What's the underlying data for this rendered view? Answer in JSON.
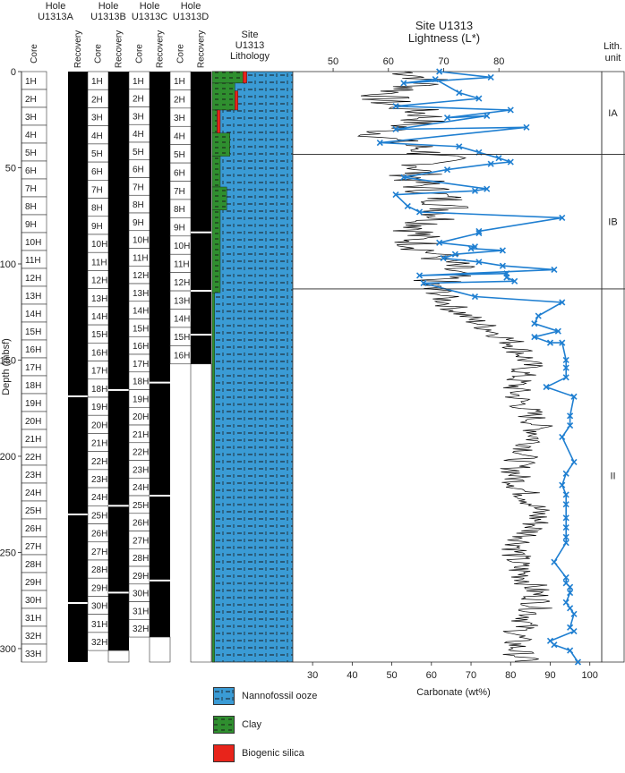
{
  "holes": [
    {
      "label": "Hole\nU1313A",
      "bottom": 307
    },
    {
      "label": "Hole\nU1313B",
      "bottom": 301
    },
    {
      "label": "Hole\nU1313C",
      "bottom": 294
    },
    {
      "label": "Hole\nU1313D",
      "bottom": 152
    }
  ],
  "col_labels": {
    "core": "Core",
    "recovery": "Recovery"
  },
  "cores": {
    "A": [
      "1H",
      "2H",
      "3H",
      "4H",
      "5H",
      "6H",
      "7H",
      "8H",
      "9H",
      "10H",
      "11H",
      "12H",
      "13H",
      "14H",
      "15H",
      "16H",
      "17H",
      "18H",
      "19H",
      "20H",
      "21H",
      "22H",
      "23H",
      "24H",
      "25H",
      "26H",
      "27H",
      "28H",
      "29H",
      "30H",
      "31H",
      "32H",
      "33H"
    ],
    "B": [
      "1H",
      "2H",
      "3H",
      "4H",
      "5H",
      "6H",
      "7H",
      "8H",
      "9H",
      "10H",
      "11H",
      "12H",
      "13H",
      "14H",
      "15H",
      "16H",
      "17H",
      "18H",
      "19H",
      "20H",
      "21H",
      "22H",
      "23H",
      "24H",
      "25H",
      "26H",
      "27H",
      "28H",
      "29H",
      "30H",
      "31H",
      "32H"
    ],
    "C": [
      "1H",
      "2H",
      "3H",
      "4H",
      "5H",
      "6H",
      "7H",
      "8H",
      "9H",
      "10H",
      "11H",
      "12H",
      "13H",
      "14H",
      "15H",
      "16H",
      "17H",
      "18H",
      "19H",
      "20H",
      "21H",
      "22H",
      "23H",
      "24H",
      "25H",
      "26H",
      "27H",
      "28H",
      "29H",
      "30H",
      "31H",
      "32H"
    ],
    "D": [
      "1H",
      "2H",
      "3H",
      "4H",
      "5H",
      "6H",
      "7H",
      "8H",
      "9H",
      "10H",
      "11H",
      "12H",
      "13H",
      "14H",
      "15H",
      "16H"
    ]
  },
  "lithology": {
    "title": "Site\nU1313\nLithology",
    "legend": [
      {
        "name": "Nannofossil ooze",
        "color": "#3a9bd5"
      },
      {
        "name": "Clay",
        "color": "#2f8f2f"
      },
      {
        "name": "Biogenic silica",
        "color": "#e8241b"
      }
    ],
    "clay_intervals": [
      {
        "top": 0,
        "bottom": 6,
        "width": 0.38
      },
      {
        "top": 6,
        "bottom": 20,
        "width": 0.28
      },
      {
        "top": 20,
        "bottom": 32,
        "width": 0.06
      },
      {
        "top": 32,
        "bottom": 44,
        "width": 0.22
      },
      {
        "top": 44,
        "bottom": 60,
        "width": 0.1
      },
      {
        "top": 60,
        "bottom": 72,
        "width": 0.18
      },
      {
        "top": 72,
        "bottom": 115,
        "width": 0.1
      },
      {
        "top": 115,
        "bottom": 307,
        "width": 0.03
      }
    ],
    "silica_intervals": [
      {
        "top": 0,
        "bottom": 6,
        "from": 0.38,
        "to": 0.43
      },
      {
        "top": 10,
        "bottom": 20,
        "from": 0.28,
        "to": 0.32
      },
      {
        "top": 20,
        "bottom": 32,
        "from": 0.06,
        "to": 0.1
      }
    ]
  },
  "chart_data": {
    "type": "line",
    "title": "Site U1313\nLightness (L*)",
    "xlabel_bottom": "Carbonate (wt%)",
    "xlabel_top": "Lightness (L*)",
    "ylabel": "Depth (mbsf)",
    "ylim": [
      0,
      307
    ],
    "yticks": [
      0,
      50,
      100,
      150,
      200,
      250,
      300
    ],
    "carbonate_xlim": [
      25,
      103
    ],
    "carbonate_xticks": [
      30,
      40,
      50,
      60,
      70,
      80,
      90,
      100
    ],
    "lightness_xlim": [
      42.7,
      98.6
    ],
    "lightness_xticks": [
      50,
      60,
      70,
      80
    ],
    "lith_units": [
      {
        "label": "IA",
        "top": 0,
        "bottom": 43
      },
      {
        "label": "IB",
        "top": 43,
        "bottom": 113
      },
      {
        "label": "II",
        "top": 113,
        "bottom": 307
      }
    ],
    "lith_unit_header": "Lith.\nunit",
    "series": [
      {
        "name": "Carbonate",
        "color": "#1f7fd1",
        "points": [
          [
            62,
            0
          ],
          [
            75,
            3
          ],
          [
            53,
            6
          ],
          [
            61,
            4
          ],
          [
            67,
            11
          ],
          [
            72,
            14
          ],
          [
            51,
            18
          ],
          [
            80,
            20
          ],
          [
            64,
            24
          ],
          [
            74,
            23
          ],
          [
            51,
            30
          ],
          [
            84,
            29
          ],
          [
            47,
            37
          ],
          [
            67,
            39
          ],
          [
            72,
            42
          ],
          [
            77,
            45
          ],
          [
            80,
            47
          ],
          [
            75,
            48
          ],
          [
            64,
            51
          ],
          [
            53,
            55
          ],
          [
            74,
            61
          ],
          [
            71,
            62
          ],
          [
            51,
            64
          ],
          [
            54,
            70
          ],
          [
            57,
            73
          ],
          [
            93,
            76
          ],
          [
            72,
            83
          ],
          [
            72,
            84
          ],
          [
            62,
            89
          ],
          [
            71,
            91
          ],
          [
            70,
            92
          ],
          [
            78,
            93
          ],
          [
            66,
            95
          ],
          [
            63,
            97
          ],
          [
            72,
            99
          ],
          [
            78,
            101
          ],
          [
            91,
            103
          ],
          [
            57,
            106
          ],
          [
            79,
            105
          ],
          [
            79,
            107
          ],
          [
            81,
            109
          ],
          [
            58,
            110
          ],
          [
            71,
            117
          ],
          [
            93,
            120
          ],
          [
            87,
            127
          ],
          [
            86,
            131
          ],
          [
            92,
            135
          ],
          [
            86,
            138
          ],
          [
            90,
            141
          ],
          [
            93,
            141
          ],
          [
            94,
            150
          ],
          [
            94,
            154
          ],
          [
            94,
            159
          ],
          [
            89,
            164
          ],
          [
            96,
            169
          ],
          [
            95,
            179
          ],
          [
            95,
            184
          ],
          [
            93,
            190
          ],
          [
            96,
            203
          ],
          [
            94,
            209
          ],
          [
            93,
            215
          ],
          [
            94,
            220
          ],
          [
            94,
            225
          ],
          [
            94,
            232
          ],
          [
            94,
            237
          ],
          [
            94,
            242
          ],
          [
            94,
            245
          ],
          [
            91,
            255
          ],
          [
            94,
            263
          ],
          [
            94,
            266
          ],
          [
            95,
            268
          ],
          [
            95,
            271
          ],
          [
            94,
            276
          ],
          [
            95,
            279
          ],
          [
            96,
            282
          ],
          [
            95,
            289
          ],
          [
            96,
            291
          ],
          [
            90,
            296
          ],
          [
            91,
            298
          ],
          [
            95,
            301
          ],
          [
            97,
            307
          ]
        ]
      },
      {
        "name": "Lightness (L*)",
        "color": "#000000"
      }
    ]
  }
}
